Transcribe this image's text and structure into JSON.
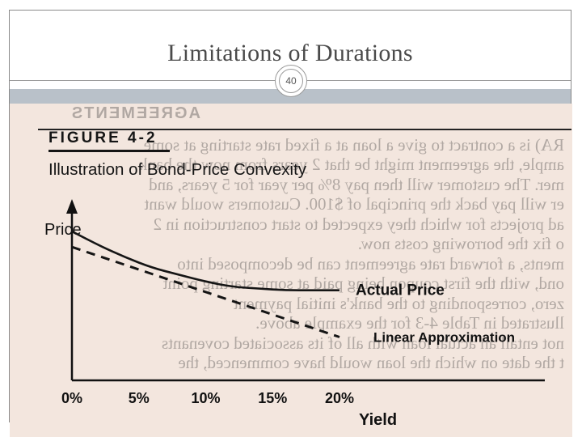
{
  "slide": {
    "title": "Limitations of Durations",
    "page_number": "40"
  },
  "figure": {
    "label": "FIGURE 4-2",
    "caption": "Illustration of Bond-Price Convexity"
  },
  "bleed_through": {
    "heading": "AGREEMENTS",
    "lines": [
      "RA) is a contract to give a loan at a fixed rate starting at some",
      "ample, the agreement might be that 2 years from now the bank",
      "mer. The customer will then pay 8% per year for 5 years, and",
      "er will pay back the principal of $100. Customers would want",
      "ad projects for which they expected to start construction in 2",
      "o fix the borrowing costs now.",
      "ments, a forward rate agreement can be decomposed into",
      "ond, with the first coupon being paid at some starting point",
      "zero, corresponding to the bank's initial payment",
      "llustrated in Table 4-3 for the example above.",
      "not entail an actual loan with all of its associated covenants",
      "t the date on which the loan would have commenced, the"
    ]
  },
  "chart_data": {
    "type": "line",
    "title": "Illustration of Bond-Price Convexity",
    "xlabel": "Yield",
    "ylabel": "Price",
    "x_tick_labels": [
      "0%",
      "5%",
      "10%",
      "15%",
      "20%"
    ],
    "xlim": [
      0,
      20
    ],
    "ylim": [
      0,
      1
    ],
    "series": [
      {
        "name": "Actual Price",
        "style": "solid",
        "x": [
          0,
          2,
          4,
          6,
          8,
          10,
          12,
          14,
          16,
          18,
          20
        ],
        "y": [
          0.86,
          0.78,
          0.71,
          0.65,
          0.61,
          0.57,
          0.54,
          0.53,
          0.52,
          0.52,
          0.52
        ]
      },
      {
        "name": "Linear Approximation",
        "style": "dashed",
        "x": [
          0,
          20
        ],
        "y": [
          0.77,
          0.25
        ]
      }
    ]
  }
}
